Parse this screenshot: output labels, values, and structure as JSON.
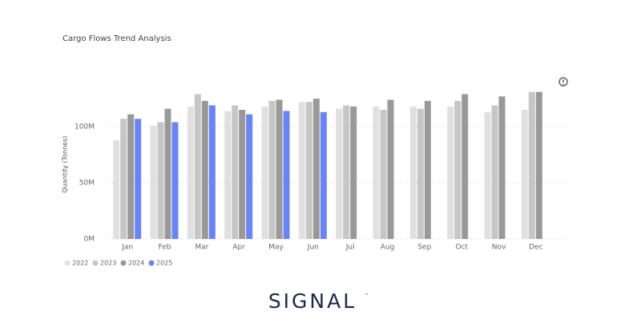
{
  "chart_data": {
    "type": "bar",
    "title": "Cargo Flows Trend Analysis",
    "y_label": "Quantity (Tonnes)",
    "categories": [
      "Jan",
      "Feb",
      "Mar",
      "Apr",
      "May",
      "Jun",
      "Jul",
      "Aug",
      "Sep",
      "Oct",
      "Nov",
      "Dec"
    ],
    "series": [
      {
        "name": "2022",
        "color": "#e0e0e0",
        "values": [
          88,
          101,
          118,
          114,
          118,
          122,
          116,
          118,
          118,
          118,
          113,
          115
        ]
      },
      {
        "name": "2023",
        "color": "#c6c6c6",
        "values": [
          107,
          104,
          129,
          119,
          123,
          122,
          119,
          115,
          116,
          123,
          119,
          131
        ]
      },
      {
        "name": "2024",
        "color": "#999999",
        "values": [
          111,
          116,
          123,
          115,
          124,
          125,
          118,
          124,
          123,
          129,
          127,
          131
        ]
      },
      {
        "name": "2025",
        "color": "#6b84f4",
        "values": [
          107,
          104,
          119,
          111,
          114,
          113,
          null,
          null,
          null,
          null,
          null,
          null
        ]
      }
    ],
    "ylim": [
      0,
      145
    ],
    "yticks": [
      {
        "value": 0,
        "label": "0M"
      },
      {
        "value": 50,
        "label": "50M"
      },
      {
        "value": 100,
        "label": "100M"
      }
    ],
    "grid": true,
    "legend": "bottom-left"
  },
  "brand": {
    "name": "SIGNAL",
    "mark": "™"
  }
}
